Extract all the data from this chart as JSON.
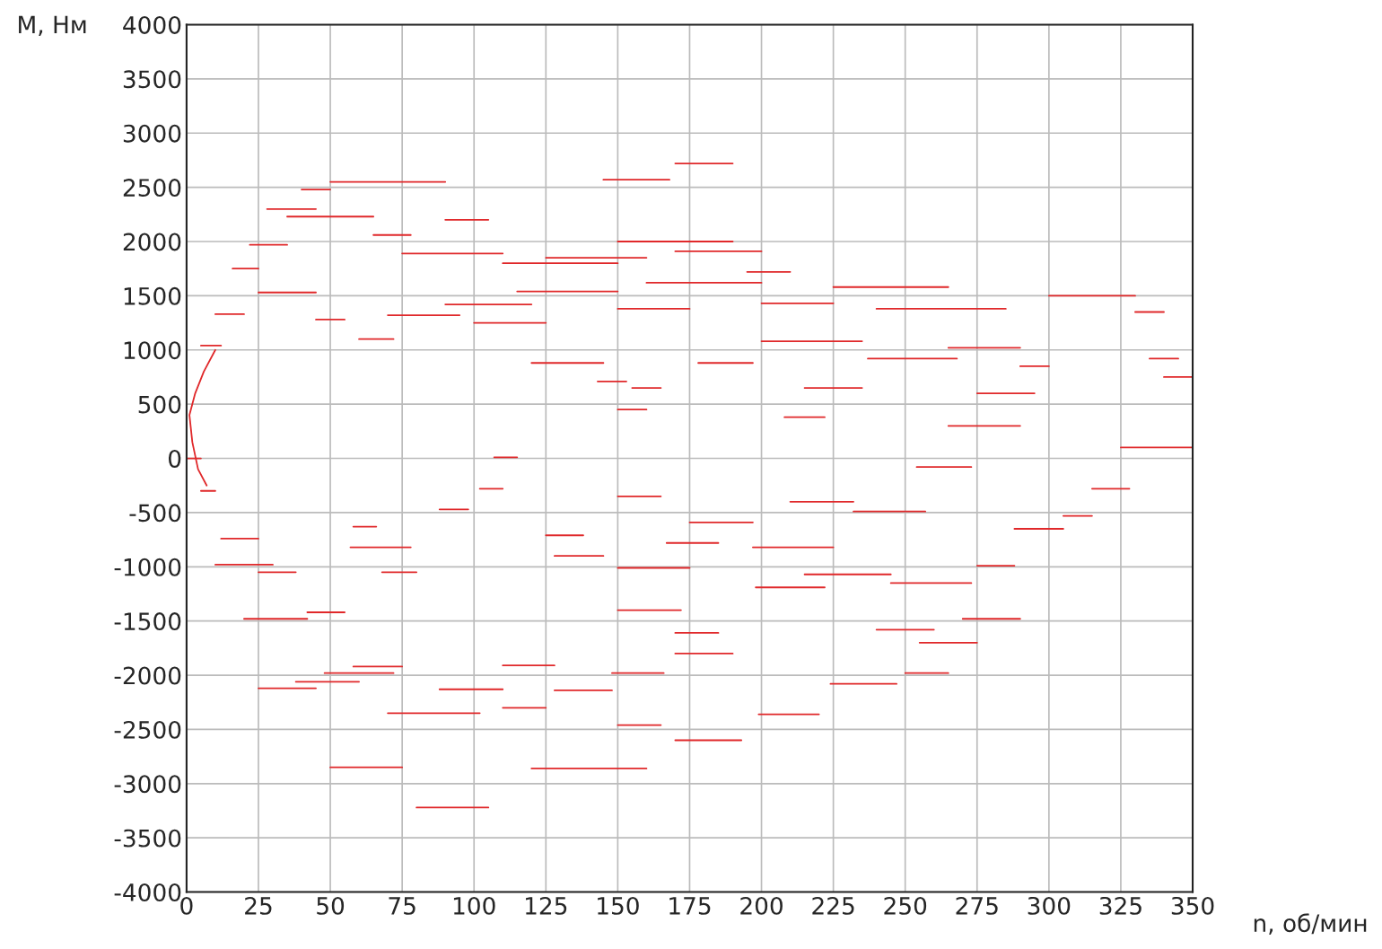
{
  "chart_data": {
    "type": "line",
    "xlabel": "n, об/мин",
    "ylabel": "M, Нм",
    "xlim": [
      0,
      350
    ],
    "xticks": [
      0,
      25,
      50,
      75,
      100,
      125,
      150,
      175,
      200,
      225,
      250,
      275,
      300,
      325,
      350
    ],
    "ylim": [
      -4000,
      4000
    ],
    "yticks": [
      -4000,
      -3500,
      -3000,
      -2500,
      -2000,
      -1500,
      -1000,
      -500,
      0,
      500,
      1000,
      1500,
      2000,
      2500,
      3000,
      3500,
      4000
    ],
    "grid": true,
    "marker": "none",
    "line_style": "solid",
    "series": [
      {
        "color": "#e0282a",
        "x": [
          50,
          90
        ],
        "values": [
          2550,
          2550
        ]
      },
      {
        "color": "#e0282a",
        "x": [
          40,
          50
        ],
        "values": [
          2480,
          2480
        ]
      },
      {
        "color": "#e0282a",
        "x": [
          28,
          45
        ],
        "values": [
          2300,
          2300
        ]
      },
      {
        "color": "#e0282a",
        "x": [
          35,
          65
        ],
        "values": [
          2230,
          2230
        ]
      },
      {
        "color": "#e0282a",
        "x": [
          90,
          105
        ],
        "values": [
          2200,
          2200
        ]
      },
      {
        "color": "#e0282a",
        "x": [
          145,
          168
        ],
        "values": [
          2570,
          2570
        ]
      },
      {
        "color": "#e0282a",
        "x": [
          170,
          190
        ],
        "values": [
          2720,
          2720
        ]
      },
      {
        "color": "#e0282a",
        "x": [
          22,
          35
        ],
        "values": [
          1970,
          1970
        ]
      },
      {
        "color": "#e0282a",
        "x": [
          65,
          78
        ],
        "values": [
          2060,
          2060
        ]
      },
      {
        "color": "#e0282a",
        "x": [
          75,
          110
        ],
        "values": [
          1890,
          1890
        ]
      },
      {
        "color": "#e0282a",
        "x": [
          110,
          150
        ],
        "values": [
          1800,
          1800
        ]
      },
      {
        "color": "#e0282a",
        "x": [
          125,
          160
        ],
        "values": [
          1850,
          1850
        ]
      },
      {
        "color": "#e0282a",
        "x": [
          150,
          190
        ],
        "values": [
          2000,
          2000
        ]
      },
      {
        "color": "#e0282a",
        "x": [
          170,
          200
        ],
        "values": [
          1910,
          1910
        ]
      },
      {
        "color": "#e0282a",
        "x": [
          16,
          25
        ],
        "values": [
          1750,
          1750
        ]
      },
      {
        "color": "#e0282a",
        "x": [
          25,
          45
        ],
        "values": [
          1530,
          1530
        ]
      },
      {
        "color": "#e0282a",
        "x": [
          10,
          20
        ],
        "values": [
          1330,
          1330
        ]
      },
      {
        "color": "#e0282a",
        "x": [
          5,
          12
        ],
        "values": [
          1040,
          1040
        ]
      },
      {
        "color": "#e0282a",
        "x": [
          45,
          55
        ],
        "values": [
          1280,
          1280
        ]
      },
      {
        "color": "#e0282a",
        "x": [
          60,
          72
        ],
        "values": [
          1100,
          1100
        ]
      },
      {
        "color": "#e0282a",
        "x": [
          70,
          95
        ],
        "values": [
          1320,
          1320
        ]
      },
      {
        "color": "#e0282a",
        "x": [
          90,
          120
        ],
        "values": [
          1420,
          1420
        ]
      },
      {
        "color": "#e0282a",
        "x": [
          100,
          125
        ],
        "values": [
          1250,
          1250
        ]
      },
      {
        "color": "#e0282a",
        "x": [
          115,
          150
        ],
        "values": [
          1540,
          1540
        ]
      },
      {
        "color": "#e0282a",
        "x": [
          150,
          175
        ],
        "values": [
          1380,
          1380
        ]
      },
      {
        "color": "#e0282a",
        "x": [
          160,
          200
        ],
        "values": [
          1620,
          1620
        ]
      },
      {
        "color": "#e0282a",
        "x": [
          195,
          210
        ],
        "values": [
          1720,
          1720
        ]
      },
      {
        "color": "#e0282a",
        "x": [
          200,
          225
        ],
        "values": [
          1430,
          1430
        ]
      },
      {
        "color": "#e0282a",
        "x": [
          225,
          265
        ],
        "values": [
          1580,
          1580
        ]
      },
      {
        "color": "#e0282a",
        "x": [
          240,
          285
        ],
        "values": [
          1380,
          1380
        ]
      },
      {
        "color": "#e0282a",
        "x": [
          265,
          290
        ],
        "values": [
          1020,
          1020
        ]
      },
      {
        "color": "#e0282a",
        "x": [
          300,
          330
        ],
        "values": [
          1500,
          1500
        ]
      },
      {
        "color": "#e0282a",
        "x": [
          330,
          340
        ],
        "values": [
          1350,
          1350
        ]
      },
      {
        "color": "#e0282a",
        "x": [
          335,
          345
        ],
        "values": [
          920,
          920
        ]
      },
      {
        "color": "#e0282a",
        "x": [
          340,
          350
        ],
        "values": [
          750,
          750
        ]
      },
      {
        "color": "#e0282a",
        "x": [
          325,
          350
        ],
        "values": [
          100,
          100
        ]
      },
      {
        "color": "#e0282a",
        "x": [
          315,
          328
        ],
        "values": [
          -280,
          -280
        ]
      },
      {
        "color": "#e0282a",
        "x": [
          305,
          315
        ],
        "values": [
          -530,
          -530
        ]
      },
      {
        "color": "#e0282a",
        "x": [
          288,
          305
        ],
        "values": [
          -650,
          -650
        ]
      },
      {
        "color": "#e0282a",
        "x": [
          275,
          288
        ],
        "values": [
          -990,
          -990
        ]
      },
      {
        "color": "#e0282a",
        "x": [
          245,
          273
        ],
        "values": [
          -1150,
          -1150
        ]
      },
      {
        "color": "#e0282a",
        "x": [
          215,
          245
        ],
        "values": [
          -1070,
          -1070
        ]
      },
      {
        "color": "#e0282a",
        "x": [
          0,
          5
        ],
        "values": [
          0,
          0
        ]
      },
      {
        "color": "#e0282a",
        "x": [
          5,
          10
        ],
        "values": [
          -300,
          -300
        ]
      },
      {
        "color": "#e0282a",
        "x": [
          12,
          25
        ],
        "values": [
          -740,
          -740
        ]
      },
      {
        "color": "#e0282a",
        "x": [
          10,
          30
        ],
        "values": [
          -980,
          -980
        ]
      },
      {
        "color": "#e0282a",
        "x": [
          25,
          38
        ],
        "values": [
          -1050,
          -1050
        ]
      },
      {
        "color": "#e0282a",
        "x": [
          20,
          42
        ],
        "values": [
          -1480,
          -1480
        ]
      },
      {
        "color": "#e0282a",
        "x": [
          42,
          55
        ],
        "values": [
          -1420,
          -1420
        ]
      },
      {
        "color": "#e0282a",
        "x": [
          25,
          45
        ],
        "values": [
          -2120,
          -2120
        ]
      },
      {
        "color": "#e0282a",
        "x": [
          38,
          60
        ],
        "values": [
          -2060,
          -2060
        ]
      },
      {
        "color": "#e0282a",
        "x": [
          48,
          72
        ],
        "values": [
          -1980,
          -1980
        ]
      },
      {
        "color": "#e0282a",
        "x": [
          58,
          75
        ],
        "values": [
          -1920,
          -1920
        ]
      },
      {
        "color": "#e0282a",
        "x": [
          50,
          75
        ],
        "values": [
          -2850,
          -2850
        ]
      },
      {
        "color": "#e0282a",
        "x": [
          80,
          105
        ],
        "values": [
          -3220,
          -3220
        ]
      },
      {
        "color": "#e0282a",
        "x": [
          70,
          102
        ],
        "values": [
          -2350,
          -2350
        ]
      },
      {
        "color": "#e0282a",
        "x": [
          88,
          110
        ],
        "values": [
          -2130,
          -2130
        ]
      },
      {
        "color": "#e0282a",
        "x": [
          110,
          128
        ],
        "values": [
          -1910,
          -1910
        ]
      },
      {
        "color": "#e0282a",
        "x": [
          110,
          125
        ],
        "values": [
          -2300,
          -2300
        ]
      },
      {
        "color": "#e0282a",
        "x": [
          128,
          148
        ],
        "values": [
          -2140,
          -2140
        ]
      },
      {
        "color": "#e0282a",
        "x": [
          150,
          165
        ],
        "values": [
          -2460,
          -2460
        ]
      },
      {
        "color": "#e0282a",
        "x": [
          148,
          166
        ],
        "values": [
          -1980,
          -1980
        ]
      },
      {
        "color": "#e0282a",
        "x": [
          120,
          160
        ],
        "values": [
          -2860,
          -2860
        ]
      },
      {
        "color": "#e0282a",
        "x": [
          170,
          193
        ],
        "values": [
          -2600,
          -2600
        ]
      },
      {
        "color": "#e0282a",
        "x": [
          199,
          220
        ],
        "values": [
          -2360,
          -2360
        ]
      },
      {
        "color": "#e0282a",
        "x": [
          170,
          190
        ],
        "values": [
          -1800,
          -1800
        ]
      },
      {
        "color": "#e0282a",
        "x": [
          170,
          185
        ],
        "values": [
          -1610,
          -1610
        ]
      },
      {
        "color": "#e0282a",
        "x": [
          150,
          172
        ],
        "values": [
          -1400,
          -1400
        ]
      },
      {
        "color": "#e0282a",
        "x": [
          198,
          222
        ],
        "values": [
          -1190,
          -1190
        ]
      },
      {
        "color": "#e0282a",
        "x": [
          224,
          247
        ],
        "values": [
          -2080,
          -2080
        ]
      },
      {
        "color": "#e0282a",
        "x": [
          240,
          260
        ],
        "values": [
          -1580,
          -1580
        ]
      },
      {
        "color": "#e0282a",
        "x": [
          255,
          275
        ],
        "values": [
          -1700,
          -1700
        ]
      },
      {
        "color": "#e0282a",
        "x": [
          270,
          290
        ],
        "values": [
          -1480,
          -1480
        ]
      },
      {
        "color": "#e0282a",
        "x": [
          250,
          265
        ],
        "values": [
          -1980,
          -1980
        ]
      },
      {
        "color": "#e0282a",
        "x": [
          57,
          78
        ],
        "values": [
          -820,
          -820
        ]
      },
      {
        "color": "#e0282a",
        "x": [
          68,
          80
        ],
        "values": [
          -1050,
          -1050
        ]
      },
      {
        "color": "#e0282a",
        "x": [
          58,
          66
        ],
        "values": [
          -630,
          -630
        ]
      },
      {
        "color": "#e0282a",
        "x": [
          88,
          98
        ],
        "values": [
          -470,
          -470
        ]
      },
      {
        "color": "#e0282a",
        "x": [
          102,
          110
        ],
        "values": [
          -280,
          -280
        ]
      },
      {
        "color": "#e0282a",
        "x": [
          107,
          115
        ],
        "values": [
          10,
          10
        ]
      },
      {
        "color": "#e0282a",
        "x": [
          125,
          138
        ],
        "values": [
          -710,
          -710
        ]
      },
      {
        "color": "#e0282a",
        "x": [
          128,
          145
        ],
        "values": [
          -900,
          -900
        ]
      },
      {
        "color": "#e0282a",
        "x": [
          150,
          175
        ],
        "values": [
          -1010,
          -1010
        ]
      },
      {
        "color": "#e0282a",
        "x": [
          150,
          165
        ],
        "values": [
          -350,
          -350
        ]
      },
      {
        "color": "#e0282a",
        "x": [
          167,
          185
        ],
        "values": [
          -780,
          -780
        ]
      },
      {
        "color": "#e0282a",
        "x": [
          175,
          197
        ],
        "values": [
          -590,
          -590
        ]
      },
      {
        "color": "#e0282a",
        "x": [
          197,
          225
        ],
        "values": [
          -820,
          -820
        ]
      },
      {
        "color": "#e0282a",
        "x": [
          210,
          232
        ],
        "values": [
          -400,
          -400
        ]
      },
      {
        "color": "#e0282a",
        "x": [
          232,
          257
        ],
        "values": [
          -490,
          -490
        ]
      },
      {
        "color": "#e0282a",
        "x": [
          254,
          273
        ],
        "values": [
          -80,
          -80
        ]
      },
      {
        "color": "#e0282a",
        "x": [
          143,
          153
        ],
        "values": [
          710,
          710
        ]
      },
      {
        "color": "#e0282a",
        "x": [
          155,
          165
        ],
        "values": [
          650,
          650
        ]
      },
      {
        "color": "#e0282a",
        "x": [
          150,
          160
        ],
        "values": [
          450,
          450
        ]
      },
      {
        "color": "#e0282a",
        "x": [
          208,
          222
        ],
        "values": [
          380,
          380
        ]
      },
      {
        "color": "#e0282a",
        "x": [
          215,
          235
        ],
        "values": [
          650,
          650
        ]
      },
      {
        "color": "#e0282a",
        "x": [
          120,
          145
        ],
        "values": [
          880,
          880
        ]
      },
      {
        "color": "#e0282a",
        "x": [
          178,
          197
        ],
        "values": [
          880,
          880
        ]
      },
      {
        "color": "#e0282a",
        "x": [
          200,
          235
        ],
        "values": [
          1080,
          1080
        ]
      },
      {
        "color": "#e0282a",
        "x": [
          237,
          268
        ],
        "values": [
          920,
          920
        ]
      },
      {
        "color": "#e0282a",
        "x": [
          275,
          295
        ],
        "values": [
          600,
          600
        ]
      },
      {
        "color": "#e0282a",
        "x": [
          290,
          300
        ],
        "values": [
          850,
          850
        ]
      },
      {
        "color": "#e0282a",
        "x": [
          265,
          290
        ],
        "values": [
          300,
          300
        ]
      },
      {
        "color": "#e0282a",
        "x": [
          10,
          6,
          3,
          1,
          2,
          4,
          7
        ],
        "values": [
          1000,
          800,
          600,
          400,
          150,
          -100,
          -250
        ]
      }
    ]
  }
}
